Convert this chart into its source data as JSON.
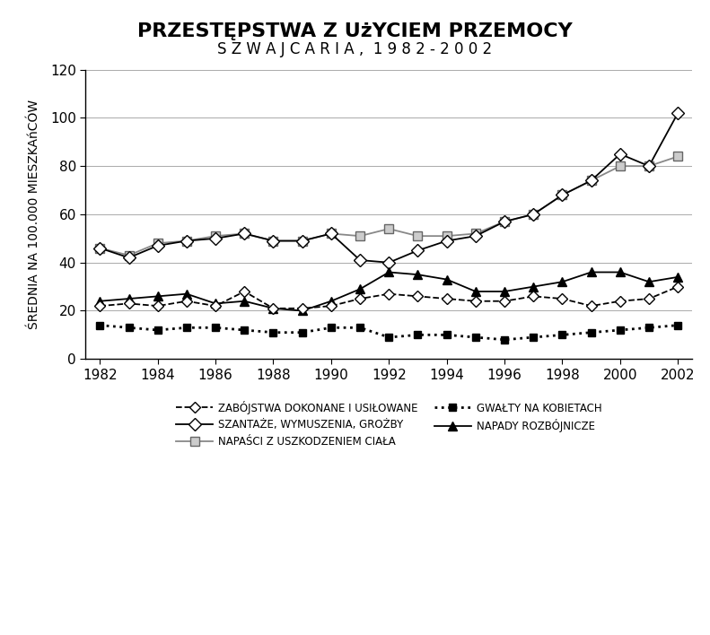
{
  "title_line1": "PRZESTĘPSTWA Z UżYCIEM PRZEMOCY",
  "title_line2": "S Z W A J C A R I A ,  1 9 8 2 - 2 0 0 2",
  "ylabel": "ŚREDNIA NA 100.000 MIESZKAńCÓW",
  "years": [
    1982,
    1983,
    1984,
    1985,
    1986,
    1987,
    1988,
    1989,
    1990,
    1991,
    1992,
    1993,
    1994,
    1995,
    1996,
    1997,
    1998,
    1999,
    2000,
    2001,
    2002
  ],
  "zabojstwa": [
    22,
    23,
    22,
    24,
    22,
    28,
    21,
    21,
    22,
    25,
    27,
    26,
    25,
    24,
    24,
    26,
    25,
    22,
    24,
    25,
    30
  ],
  "szantaze": [
    46,
    42,
    47,
    49,
    50,
    52,
    49,
    49,
    52,
    41,
    40,
    45,
    49,
    51,
    57,
    60,
    68,
    74,
    85,
    80,
    102
  ],
  "napasci": [
    46,
    43,
    48,
    49,
    51,
    52,
    49,
    49,
    52,
    51,
    54,
    51,
    51,
    52,
    57,
    60,
    68,
    74,
    80,
    80,
    84
  ],
  "gwalty": [
    14,
    13,
    12,
    13,
    13,
    12,
    11,
    11,
    13,
    13,
    9,
    10,
    10,
    9,
    8,
    9,
    10,
    11,
    12,
    13,
    14
  ],
  "napady": [
    24,
    25,
    26,
    27,
    23,
    24,
    21,
    20,
    24,
    29,
    36,
    35,
    33,
    28,
    28,
    30,
    32,
    36,
    36,
    32,
    34
  ],
  "ylim": [
    0,
    120
  ],
  "yticks": [
    0,
    20,
    40,
    60,
    80,
    100,
    120
  ],
  "xticks": [
    1982,
    1984,
    1986,
    1988,
    1990,
    1992,
    1994,
    1996,
    1998,
    2000,
    2002
  ],
  "bg_color": "#ffffff",
  "line_color": "#000000"
}
